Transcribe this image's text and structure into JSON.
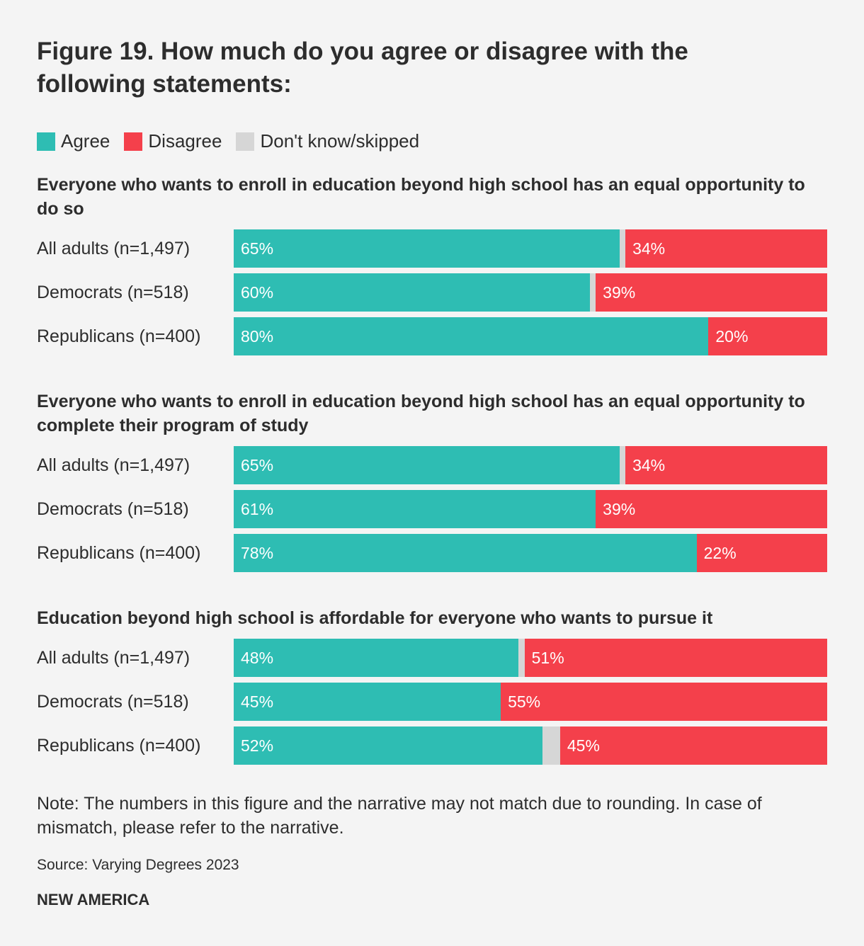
{
  "chart_data": {
    "type": "bar",
    "orientation": "horizontal-stacked",
    "title": "Figure 19. How much do you agree or disagree with the following statements:",
    "legend": {
      "placement": "top-left",
      "entries": [
        "Agree",
        "Disagree",
        "Don't know/skipped"
      ]
    },
    "colors": {
      "agree": "#2ebdb3",
      "disagree": "#f4404b",
      "dk": "#d6d6d6"
    },
    "xlim": [
      0,
      100
    ],
    "panels": [
      {
        "title": "Everyone who wants to enroll in education beyond high school has an equal opportunity to do so",
        "rows": [
          {
            "label": "All adults (n=1,497)",
            "agree": 65,
            "disagree": 34,
            "dk": 1,
            "agree_label": "65%",
            "disagree_label": "34%"
          },
          {
            "label": "Democrats (n=518)",
            "agree": 60,
            "disagree": 39,
            "dk": 1,
            "agree_label": "60%",
            "disagree_label": "39%"
          },
          {
            "label": "Republicans (n=400)",
            "agree": 80,
            "disagree": 20,
            "dk": 0,
            "agree_label": "80%",
            "disagree_label": "20%"
          }
        ]
      },
      {
        "title": "Everyone who wants to enroll in education beyond high school has an equal opportunity to complete their program of study",
        "rows": [
          {
            "label": "All adults (n=1,497)",
            "agree": 65,
            "disagree": 34,
            "dk": 1,
            "agree_label": "65%",
            "disagree_label": "34%"
          },
          {
            "label": "Democrats (n=518)",
            "agree": 61,
            "disagree": 39,
            "dk": 0,
            "agree_label": "61%",
            "disagree_label": "39%"
          },
          {
            "label": "Republicans (n=400)",
            "agree": 78,
            "disagree": 22,
            "dk": 0,
            "agree_label": "78%",
            "disagree_label": "22%"
          }
        ]
      },
      {
        "title": "Education beyond high school is affordable for everyone who wants to pursue it",
        "rows": [
          {
            "label": "All adults (n=1,497)",
            "agree": 48,
            "disagree": 51,
            "dk": 1,
            "agree_label": "48%",
            "disagree_label": "51%"
          },
          {
            "label": "Democrats (n=518)",
            "agree": 45,
            "disagree": 55,
            "dk": 0,
            "agree_label": "45%",
            "disagree_label": "55%"
          },
          {
            "label": "Republicans (n=400)",
            "agree": 52,
            "disagree": 45,
            "dk": 3,
            "agree_label": "52%",
            "disagree_label": "45%"
          }
        ]
      }
    ]
  },
  "note": "Note: The numbers in this figure and the narrative may not match due to rounding. In case of mismatch, please refer to the narrative.",
  "source": "Source: Varying Degrees 2023",
  "brand": "NEW AMERICA"
}
